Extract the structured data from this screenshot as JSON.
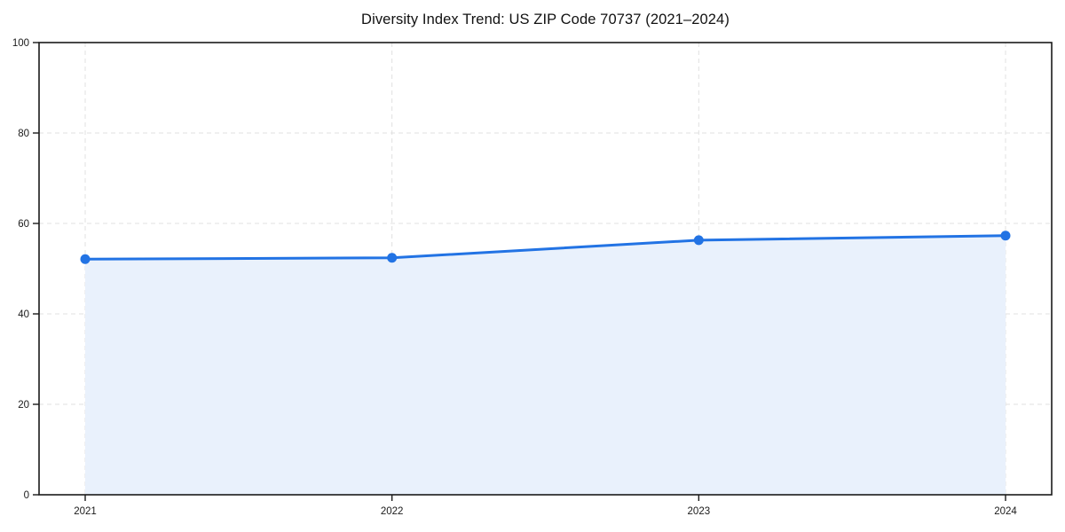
{
  "figure": {
    "title": "Diversity Index Trend: US ZIP Code 70737 (2021–2024)"
  },
  "chart_data": {
    "type": "area",
    "title": "Diversity Index Trend: US ZIP Code 70737 (2021–2024)",
    "categories": [
      "2021",
      "2022",
      "2023",
      "2024"
    ],
    "series": [
      {
        "name": "Diversity Index",
        "values": [
          52.1,
          52.4,
          56.3,
          57.3
        ]
      }
    ],
    "xlabel": "",
    "ylabel": "",
    "ylim": [
      0,
      100
    ],
    "yticks": [
      0,
      20,
      40,
      60,
      80,
      100
    ],
    "grid": true,
    "grid_style": "dashed",
    "legend": "none",
    "markers": true,
    "colors": {
      "line": "#2273e4",
      "marker": "#2273e4",
      "area_fill": "#e9f1fc",
      "grid": "#e0e0e0",
      "axis": "#1a1a1a",
      "tick_label": "#1a1a1a",
      "title": "#111111",
      "background": "#ffffff"
    }
  }
}
